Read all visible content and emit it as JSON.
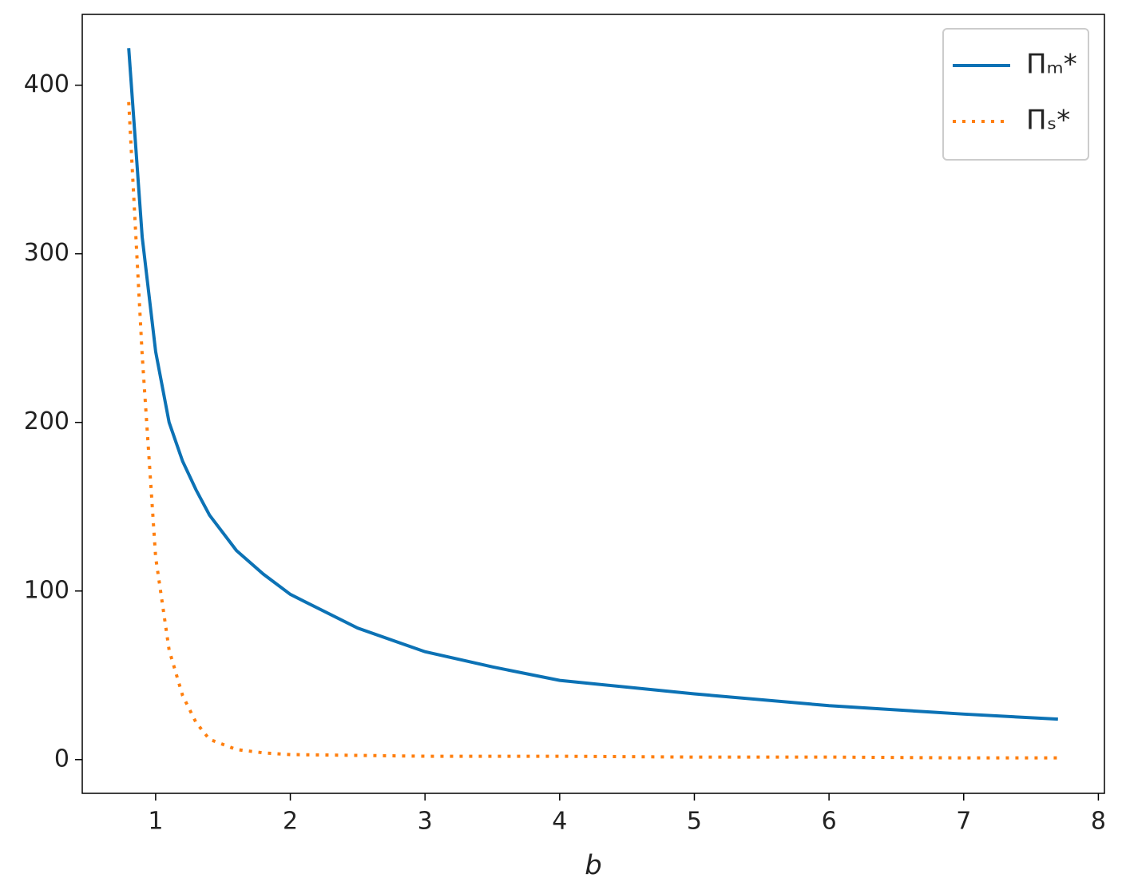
{
  "chart_data": {
    "type": "line",
    "xlabel": "b",
    "x": [
      0.8,
      0.9,
      1.0,
      1.1,
      1.2,
      1.3,
      1.4,
      1.6,
      1.8,
      2,
      2.5,
      3,
      3.5,
      4,
      5,
      6,
      7,
      7.7
    ],
    "series": [
      {
        "name": "Πₘ*",
        "color": "#0c72b5",
        "dash": "solid",
        "values": [
          422,
          310,
          242,
          200,
          177,
          160,
          145,
          124,
          110,
          98,
          78,
          64,
          55,
          47,
          39,
          32,
          27,
          24
        ]
      },
      {
        "name": "Πₛ*",
        "color": "#ff7f0e",
        "dash": "dotted",
        "values": [
          390,
          240,
          120,
          65,
          38,
          22,
          12,
          6,
          4,
          3,
          2.5,
          2,
          2,
          2,
          1.5,
          1.5,
          1,
          1
        ]
      }
    ],
    "xlim": [
      0.455,
      8.045
    ],
    "ylim": [
      -20,
      442
    ],
    "xticks": [
      1,
      2,
      3,
      4,
      5,
      6,
      7,
      8
    ],
    "yticks": [
      0,
      100,
      200,
      300,
      400
    ],
    "legend": "upper right"
  }
}
